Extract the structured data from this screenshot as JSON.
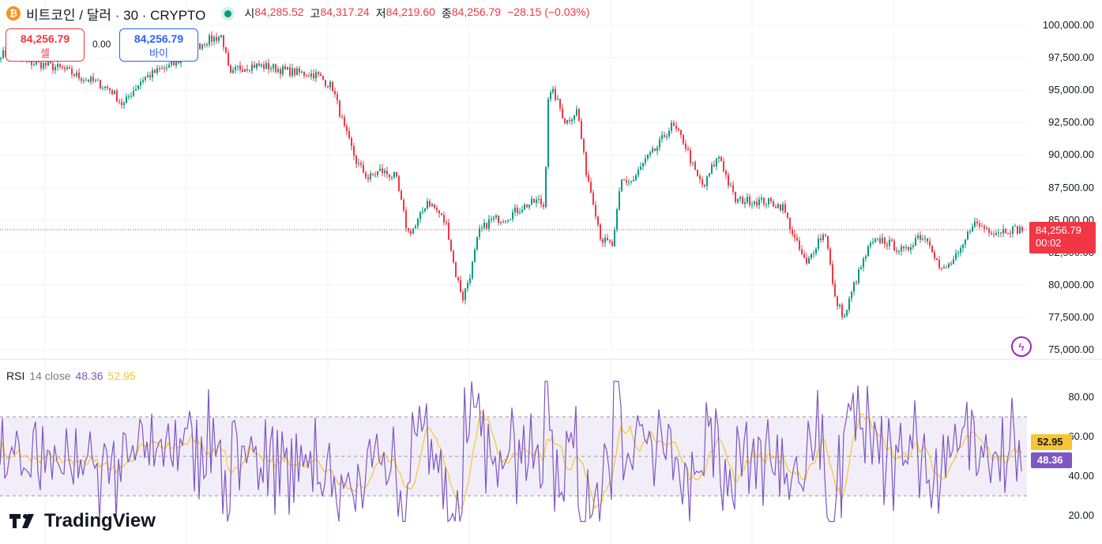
{
  "header": {
    "coin_icon": "bitcoin-icon",
    "symbol": "비트코인 / 달러 · 30 · CRYPTO",
    "ohlc": [
      {
        "key": "시",
        "value": "84,285.52"
      },
      {
        "key": "고",
        "value": "84,317.24"
      },
      {
        "key": "저",
        "value": "84,219.60"
      },
      {
        "key": "종",
        "value": "84,256.79"
      },
      {
        "key": "",
        "value": "−28.15 (−0.03%)"
      }
    ]
  },
  "trade": {
    "sell_price": "84,256.79",
    "sell_label": "셀",
    "spread": "0.00",
    "buy_price": "84,256.79",
    "buy_label": "바이"
  },
  "price_axis": [
    "100,000.00",
    "97,500.00",
    "95,000.00",
    "92,500.00",
    "90,000.00",
    "87,500.00",
    "85,000.00",
    "82,500.00",
    "80,000.00",
    "77,500.00",
    "75,000.00"
  ],
  "last_price": {
    "price": "84,256.79",
    "countdown": "00:02"
  },
  "rsi": {
    "title": "RSI",
    "settings": "14 close",
    "value": "48.36",
    "ma_value": "52.95",
    "axis": [
      "80.00",
      "60.00",
      "40.00",
      "20.00"
    ]
  },
  "brand": "TradingView",
  "colors": {
    "up": "#089981",
    "down": "#f23645",
    "rsi": "#7e57c2",
    "rsi_ma": "#f7c531",
    "band": "#ede7f6"
  },
  "chart_data": {
    "type": "candlestick",
    "ylim": [
      75000,
      100000
    ],
    "anchors": [
      [
        0,
        97800
      ],
      [
        20,
        97600
      ],
      [
        40,
        97100
      ],
      [
        60,
        96900
      ],
      [
        80,
        96600
      ],
      [
        100,
        96000
      ],
      [
        120,
        95600
      ],
      [
        140,
        95000
      ],
      [
        155,
        93800
      ],
      [
        165,
        94800
      ],
      [
        180,
        95900
      ],
      [
        200,
        96500
      ],
      [
        220,
        97000
      ],
      [
        240,
        98000
      ],
      [
        260,
        98800
      ],
      [
        280,
        99200
      ],
      [
        290,
        96000
      ],
      [
        300,
        96700
      ],
      [
        320,
        96900
      ],
      [
        340,
        96800
      ],
      [
        360,
        96500
      ],
      [
        380,
        96300
      ],
      [
        400,
        96200
      ],
      [
        420,
        95200
      ],
      [
        435,
        92000
      ],
      [
        450,
        89500
      ],
      [
        465,
        88200
      ],
      [
        480,
        88800
      ],
      [
        500,
        88300
      ],
      [
        515,
        84000
      ],
      [
        525,
        84500
      ],
      [
        540,
        86500
      ],
      [
        555,
        85500
      ],
      [
        565,
        84500
      ],
      [
        575,
        81000
      ],
      [
        585,
        79000
      ],
      [
        595,
        81000
      ],
      [
        605,
        84000
      ],
      [
        620,
        85000
      ],
      [
        640,
        85200
      ],
      [
        660,
        86000
      ],
      [
        680,
        86500
      ],
      [
        688,
        86000
      ],
      [
        693,
        94500
      ],
      [
        700,
        94800
      ],
      [
        715,
        92500
      ],
      [
        730,
        93500
      ],
      [
        740,
        89000
      ],
      [
        750,
        86500
      ],
      [
        760,
        83500
      ],
      [
        775,
        83000
      ],
      [
        785,
        88000
      ],
      [
        800,
        88000
      ],
      [
        815,
        89500
      ],
      [
        830,
        90500
      ],
      [
        840,
        91500
      ],
      [
        850,
        92300
      ],
      [
        865,
        91000
      ],
      [
        880,
        88500
      ],
      [
        890,
        87500
      ],
      [
        900,
        89000
      ],
      [
        910,
        90000
      ],
      [
        920,
        88000
      ],
      [
        930,
        86500
      ],
      [
        950,
        86500
      ],
      [
        970,
        86400
      ],
      [
        990,
        86000
      ],
      [
        1005,
        83500
      ],
      [
        1020,
        81500
      ],
      [
        1035,
        83500
      ],
      [
        1045,
        84000
      ],
      [
        1055,
        79000
      ],
      [
        1068,
        77500
      ],
      [
        1080,
        80000
      ],
      [
        1090,
        81500
      ],
      [
        1100,
        83000
      ],
      [
        1115,
        83500
      ],
      [
        1130,
        83000
      ],
      [
        1145,
        82500
      ],
      [
        1160,
        83800
      ],
      [
        1175,
        83500
      ],
      [
        1190,
        81000
      ],
      [
        1200,
        81500
      ],
      [
        1215,
        82500
      ],
      [
        1230,
        84800
      ],
      [
        1245,
        84400
      ],
      [
        1260,
        84100
      ],
      [
        1275,
        84300
      ],
      [
        1293,
        84256.79
      ]
    ],
    "rsi_levels": {
      "upper": 70,
      "middle": 50,
      "lower": 30
    },
    "rsi_ylim": [
      15,
      90
    ]
  }
}
